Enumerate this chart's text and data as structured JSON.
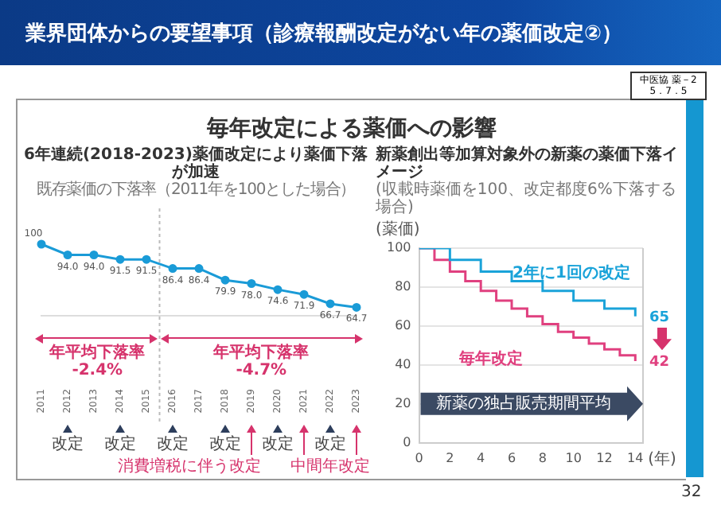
{
  "chart_data": [
    {
      "type": "other",
      "title": "業界団体からの要望事項（診療報酬改定がない年の薬価改定②）",
      "annotations": [
        "中医協 薬－2",
        "5．7．5",
        "毎年改定による薬価への影響",
        "32"
      ]
    },
    {
      "type": "line",
      "title": "6年連続(2018-2023)薬価改定により薬価下落が加速",
      "subtitle": "既存薬価の下落率（2011年を100とした場合）",
      "categories": [
        "2011",
        "2012",
        "2013",
        "2014",
        "2015",
        "2016",
        "2017",
        "2018",
        "2019",
        "2020",
        "2021",
        "2022",
        "2023"
      ],
      "values": [
        100,
        94.0,
        94.0,
        91.5,
        91.5,
        86.4,
        86.4,
        79.9,
        78.0,
        74.6,
        71.9,
        66.7,
        64.7
      ],
      "value_labels": [
        "100",
        "94.0",
        "94.0",
        "91.5",
        "91.5",
        "86.4",
        "86.4",
        "79.9",
        "78.0",
        "74.6",
        "71.9",
        "66.7",
        "64.7"
      ],
      "color": "#1a9bd7",
      "marker": "circle",
      "legend": false,
      "annotations": [
        "年平均下落率 -2.4%",
        "年平均下落率 -4.7%",
        "改定",
        "改定",
        "改定",
        "改定",
        "改定",
        "改定",
        "消費増税に伴う改定",
        "中間年改定"
      ]
    },
    {
      "type": "step",
      "title": "新薬創出等加算対象外の新薬の薬価下落イメージ",
      "subtitle": "(収載時薬価を100、改定都度6%下落する場合)",
      "ylabel": "(薬価)",
      "xlabel": "(年)",
      "xlim": [
        0,
        14.5
      ],
      "xticks": [
        0,
        2,
        4,
        6,
        8,
        10,
        12,
        14
      ],
      "ylim": [
        0,
        100
      ],
      "yticks": [
        0,
        20,
        40,
        60,
        80,
        100
      ],
      "grid": "y",
      "legend": false,
      "series": [
        {
          "name": "2年に1回の改定",
          "color": "#1aa3d9",
          "x": [
            0,
            2,
            4,
            6,
            8,
            10,
            12,
            14
          ],
          "values": [
            100,
            94,
            88,
            83,
            78,
            73,
            69,
            65
          ],
          "value_labels": [
            null,
            null,
            null,
            null,
            null,
            null,
            null,
            "65"
          ]
        },
        {
          "name": "毎年改定",
          "color": "#e0407f",
          "x": [
            0,
            1,
            2,
            3,
            4,
            5,
            6,
            7,
            8,
            9,
            10,
            11,
            12,
            13,
            14
          ],
          "values": [
            100,
            94,
            88,
            83,
            78,
            73,
            69,
            65,
            61,
            57,
            54,
            51,
            48,
            45,
            42
          ],
          "value_labels": [
            null,
            null,
            null,
            null,
            null,
            null,
            null,
            null,
            null,
            null,
            null,
            null,
            null,
            null,
            "42"
          ]
        }
      ],
      "annotations": [
        "新薬の独占販売期間平均"
      ]
    }
  ]
}
